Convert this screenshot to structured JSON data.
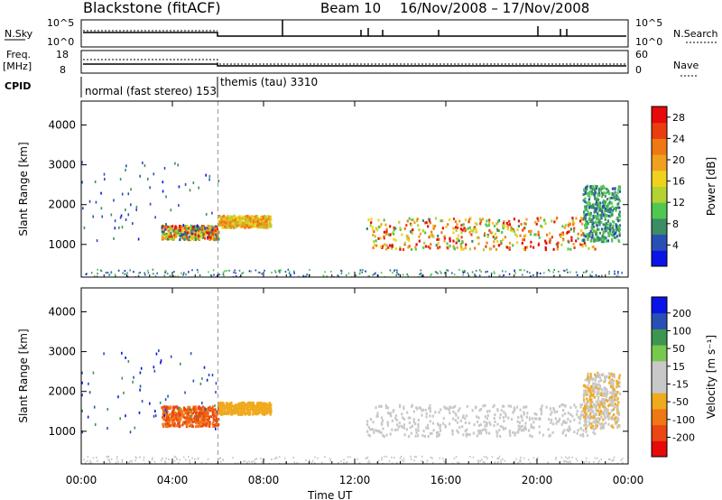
{
  "header": {
    "station": "Blackstone (fitACF)",
    "beam": "Beam 10",
    "dates": "16/Nov/2008 – 17/Nov/2008"
  },
  "params": {
    "nsky_label": "N.Sky",
    "nsearch_label": "N.Search",
    "nsky_ticks": [
      "10^5",
      "10^0"
    ],
    "nsearch_ticks": [
      "10^5",
      "10^0"
    ],
    "freq_label_1": "Freq.",
    "freq_label_2": "[MHz]",
    "freq_ticks": [
      "18",
      "8"
    ],
    "nave_label": "Nave",
    "nave_ticks": [
      "60",
      "0"
    ],
    "cpid_label": "CPID",
    "cpid_mode_1": "normal (fast stereo) 153",
    "cpid_mode_2": "themis (tau) 3310",
    "mode_change_hour": 6
  },
  "chart_data": [
    {
      "type": "heatmap",
      "title": "",
      "quantity": "Power",
      "ylabel": "Slant Range [km]",
      "xlabel": "Time UT",
      "xlim": [
        0,
        24
      ],
      "ylim": [
        180,
        4600
      ],
      "x_ticks": [
        "00:00",
        "04:00",
        "08:00",
        "12:00",
        "16:00",
        "20:00",
        "00:00"
      ],
      "y_ticks": [
        1000,
        2000,
        3000,
        4000
      ],
      "colorbar_label": "Power [dB]",
      "colorbar_ticks": [
        "4",
        "8",
        "12",
        "16",
        "20",
        "24",
        "28"
      ],
      "colorbar_range": [
        0,
        30
      ],
      "colors": [
        "#0a14e6",
        "#2850b4",
        "#3c8c64",
        "#50c850",
        "#b4d232",
        "#f0d21e",
        "#f0a01e",
        "#f07814",
        "#eb3c0f",
        "#e60a0a"
      ],
      "regions": [
        {
          "t": [
            3.5,
            6.0
          ],
          "r": [
            1150,
            1500
          ],
          "value_range": [
            4,
            30
          ]
        },
        {
          "t": [
            6.0,
            8.3
          ],
          "r": [
            1450,
            1750
          ],
          "value_range": [
            12,
            24
          ]
        },
        {
          "t": [
            12.5,
            22.6
          ],
          "r": [
            900,
            1700
          ],
          "value_range": [
            8,
            30
          ]
        },
        {
          "t": [
            22.0,
            23.6
          ],
          "r": [
            1100,
            2500
          ],
          "value_range": [
            4,
            12
          ]
        }
      ]
    },
    {
      "type": "heatmap",
      "title": "",
      "quantity": "Velocity",
      "ylabel": "Slant Range [km]",
      "xlabel": "Time UT",
      "xlim": [
        0,
        24
      ],
      "ylim": [
        180,
        4600
      ],
      "x_ticks": [
        "00:00",
        "04:00",
        "08:00",
        "12:00",
        "16:00",
        "20:00",
        "00:00"
      ],
      "y_ticks": [
        1000,
        2000,
        3000,
        4000
      ],
      "colorbar_label": "Velocity [m s⁻¹]",
      "colorbar_ticks": [
        "200",
        "100",
        "50",
        "15",
        "-15",
        "-50",
        "-100",
        "-200"
      ],
      "colorbar_range": [
        -250,
        250
      ],
      "colors": [
        "#e60a0a",
        "#eb4614",
        "#f07814",
        "#f0aa1e",
        "#c8c8c8",
        "#c8c8c8",
        "#78c850",
        "#3c9650",
        "#2850b4",
        "#0a14e6"
      ],
      "regions": [
        {
          "t": [
            3.5,
            6.0
          ],
          "r": [
            1150,
            1650
          ],
          "value_range": [
            -200,
            -100
          ]
        },
        {
          "t": [
            6.0,
            8.3
          ],
          "r": [
            1450,
            1750
          ],
          "value_range": [
            -100,
            -50
          ]
        },
        {
          "t": [
            12.5,
            22.6
          ],
          "r": [
            900,
            1700
          ],
          "value_range": [
            -15,
            15
          ]
        },
        {
          "t": [
            22.0,
            23.6
          ],
          "r": [
            1100,
            2500
          ],
          "value_range": [
            -100,
            50
          ]
        }
      ]
    }
  ]
}
